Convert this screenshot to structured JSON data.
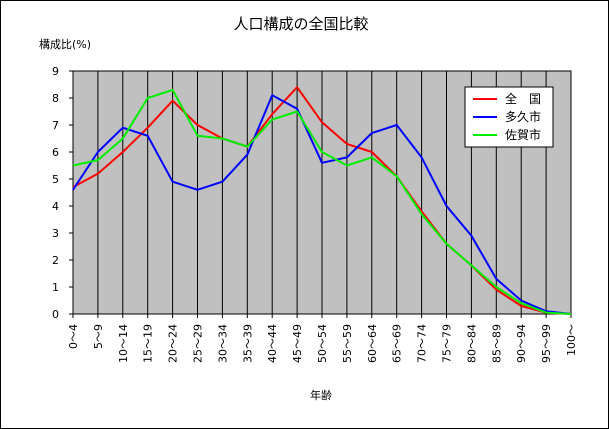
{
  "chart_data": {
    "type": "line",
    "title": "人口構成の全国比較",
    "ylabel": "構成比(%)",
    "xlabel": "年齢",
    "ylim": [
      0,
      9
    ],
    "yticks": [
      0,
      1,
      2,
      3,
      4,
      5,
      6,
      7,
      8,
      9
    ],
    "grid": true,
    "legend_position": "top-right",
    "categories": [
      "0～4",
      "5～9",
      "10～14",
      "15～19",
      "20～24",
      "25～29",
      "30～34",
      "35～39",
      "40～44",
      "45～49",
      "50～54",
      "55～59",
      "60～64",
      "65～69",
      "70～74",
      "75～79",
      "80～84",
      "85～89",
      "90～94",
      "95～99",
      "100～"
    ],
    "series": [
      {
        "name": "全　国",
        "color": "#ff0000",
        "values": [
          4.7,
          5.2,
          6.0,
          6.9,
          7.9,
          7.0,
          6.5,
          6.2,
          7.4,
          8.4,
          7.1,
          6.3,
          6.0,
          5.1,
          3.8,
          2.6,
          1.8,
          0.9,
          0.3,
          0.05,
          0.0
        ]
      },
      {
        "name": "多久市",
        "color": "#0000ff",
        "values": [
          4.6,
          6.0,
          6.9,
          6.6,
          4.9,
          4.6,
          4.9,
          5.9,
          8.1,
          7.6,
          5.6,
          5.8,
          6.7,
          7.0,
          5.8,
          4.0,
          2.9,
          1.3,
          0.5,
          0.1,
          0.0
        ]
      },
      {
        "name": "佐賀市",
        "color": "#00ee00",
        "values": [
          5.5,
          5.7,
          6.5,
          8.0,
          8.3,
          6.6,
          6.5,
          6.2,
          7.2,
          7.5,
          6.0,
          5.5,
          5.8,
          5.1,
          3.7,
          2.6,
          1.8,
          1.0,
          0.4,
          0.05,
          0.0
        ]
      }
    ]
  },
  "colors": {
    "plot_background": "#c0c0c0",
    "grid": "#000000"
  }
}
